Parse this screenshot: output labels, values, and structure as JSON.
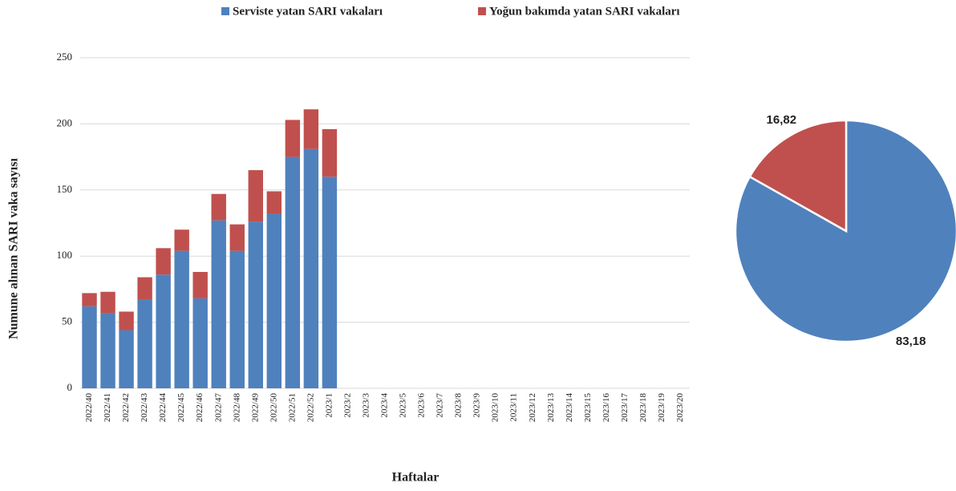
{
  "chart_data": [
    {
      "type": "bar",
      "stacked": true,
      "y_label": "Numune alınan SARI vaka sayısı",
      "x_label": "Haftalar",
      "categories": [
        "2022/40",
        "2022/41",
        "2022/42",
        "2022/43",
        "2022/44",
        "2022/45",
        "2022/46",
        "2022/47",
        "2022/48",
        "2022/49",
        "2022/50",
        "2022/51",
        "2022/52",
        "2023/1",
        "2023/2",
        "2023/3",
        "2023/4",
        "2023/5",
        "2023/6",
        "2023/7",
        "2023/8",
        "2023/9",
        "2023/10",
        "2023/11",
        "2023/12",
        "2023/13",
        "2023/14",
        "2023/15",
        "2023/16",
        "2023/17",
        "2023/18",
        "2023/19",
        "2023/20"
      ],
      "series": [
        {
          "name": "Serviste yatan SARI vakaları",
          "color": "#4f81bd",
          "values": [
            62,
            57,
            44,
            67,
            86,
            104,
            68,
            127,
            104,
            126,
            132,
            175,
            181,
            160,
            null,
            null,
            null,
            null,
            null,
            null,
            null,
            null,
            null,
            null,
            null,
            null,
            null,
            null,
            null,
            null,
            null,
            null,
            null
          ]
        },
        {
          "name": "Yoğun bakımda yatan SARI vakaları",
          "color": "#c0504d",
          "values": [
            10,
            16,
            14,
            17,
            20,
            16,
            20,
            20,
            20,
            39,
            17,
            28,
            30,
            36,
            null,
            null,
            null,
            null,
            null,
            null,
            null,
            null,
            null,
            null,
            null,
            null,
            null,
            null,
            null,
            null,
            null,
            null,
            null
          ]
        }
      ],
      "ylim": [
        0,
        250
      ],
      "yticks": [
        0,
        50,
        100,
        150,
        200,
        250
      ],
      "grid": true,
      "legend": "top"
    },
    {
      "type": "pie",
      "values": [
        83.18,
        16.82
      ],
      "value_labels": [
        "83,18",
        "16,82"
      ],
      "colors": [
        "#4f81bd",
        "#c0504d"
      ]
    }
  ]
}
